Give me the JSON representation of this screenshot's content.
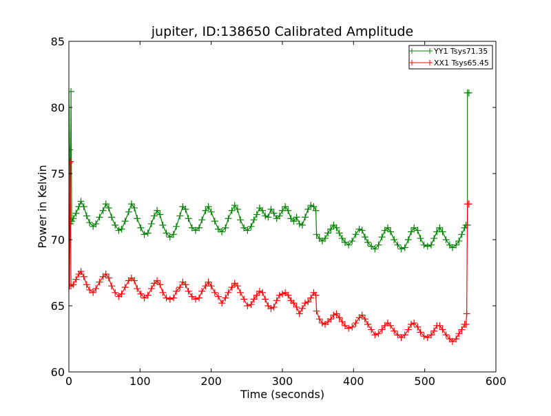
{
  "chart_data": {
    "type": "line",
    "title": "jupiter, ID:138650 Calibrated Amplitude",
    "xlabel": "Time (seconds)",
    "ylabel": "Power in Kelvin",
    "xlim": [
      0,
      600
    ],
    "ylim": [
      60,
      85
    ],
    "xticks": [
      0,
      100,
      200,
      300,
      400,
      500,
      600
    ],
    "yticks": [
      60,
      65,
      70,
      75,
      80,
      85
    ],
    "grid": false,
    "legend_position": "top-right",
    "marker": "+",
    "series": [
      {
        "name": "YY1 Tsys71.35",
        "color": "#008000",
        "points": [
          [
            0,
            81.2
          ],
          [
            1,
            76.8
          ],
          [
            2,
            71.2
          ],
          [
            3,
            81.2
          ],
          [
            4,
            71.4
          ],
          [
            6,
            71.6
          ],
          [
            10,
            72.0
          ],
          [
            14,
            72.5
          ],
          [
            17,
            72.9
          ],
          [
            21,
            72.5
          ],
          [
            25,
            71.8
          ],
          [
            29,
            71.3
          ],
          [
            34,
            71.0
          ],
          [
            38,
            71.2
          ],
          [
            43,
            71.7
          ],
          [
            48,
            72.2
          ],
          [
            52,
            72.7
          ],
          [
            56,
            72.4
          ],
          [
            60,
            71.7
          ],
          [
            65,
            71.1
          ],
          [
            70,
            70.7
          ],
          [
            74,
            70.8
          ],
          [
            79,
            71.4
          ],
          [
            84,
            72.1
          ],
          [
            88,
            72.7
          ],
          [
            92,
            72.4
          ],
          [
            96,
            71.6
          ],
          [
            101,
            70.9
          ],
          [
            106,
            70.4
          ],
          [
            111,
            70.5
          ],
          [
            116,
            71.2
          ],
          [
            120,
            71.8
          ],
          [
            124,
            72.2
          ],
          [
            128,
            71.9
          ],
          [
            132,
            71.1
          ],
          [
            137,
            70.5
          ],
          [
            142,
            70.2
          ],
          [
            147,
            70.4
          ],
          [
            151,
            71.0
          ],
          [
            156,
            71.8
          ],
          [
            160,
            72.5
          ],
          [
            164,
            72.3
          ],
          [
            168,
            71.6
          ],
          [
            173,
            70.9
          ],
          [
            178,
            70.7
          ],
          [
            183,
            70.9
          ],
          [
            187,
            71.5
          ],
          [
            192,
            72.2
          ],
          [
            196,
            72.5
          ],
          [
            200,
            72.1
          ],
          [
            205,
            71.4
          ],
          [
            210,
            70.8
          ],
          [
            215,
            70.6
          ],
          [
            220,
            70.9
          ],
          [
            224,
            71.6
          ],
          [
            229,
            72.2
          ],
          [
            233,
            72.6
          ],
          [
            237,
            72.3
          ],
          [
            241,
            71.5
          ],
          [
            246,
            70.9
          ],
          [
            251,
            70.7
          ],
          [
            256,
            71.0
          ],
          [
            260,
            71.5
          ],
          [
            264,
            71.9
          ],
          [
            268,
            72.4
          ],
          [
            272,
            72.2
          ],
          [
            276,
            71.8
          ],
          [
            280,
            71.7
          ],
          [
            284,
            72.3
          ],
          [
            288,
            72.0
          ],
          [
            292,
            71.6
          ],
          [
            296,
            71.8
          ],
          [
            300,
            72.2
          ],
          [
            304,
            72.5
          ],
          [
            308,
            72.2
          ],
          [
            312,
            71.6
          ],
          [
            316,
            71.4
          ],
          [
            320,
            71.7
          ],
          [
            324,
            71.2
          ],
          [
            328,
            71.1
          ],
          [
            332,
            71.7
          ],
          [
            336,
            72.3
          ],
          [
            340,
            72.6
          ],
          [
            344,
            72.5
          ],
          [
            347,
            72.2
          ],
          [
            348,
            70.4
          ],
          [
            352,
            70.1
          ],
          [
            356,
            69.9
          ],
          [
            360,
            70.1
          ],
          [
            364,
            70.5
          ],
          [
            368,
            70.8
          ],
          [
            372,
            71.1
          ],
          [
            376,
            70.9
          ],
          [
            380,
            70.5
          ],
          [
            384,
            70.1
          ],
          [
            388,
            69.8
          ],
          [
            393,
            69.6
          ],
          [
            398,
            69.9
          ],
          [
            403,
            70.4
          ],
          [
            408,
            70.8
          ],
          [
            412,
            70.7
          ],
          [
            416,
            70.2
          ],
          [
            420,
            69.8
          ],
          [
            425,
            69.5
          ],
          [
            430,
            69.3
          ],
          [
            435,
            69.6
          ],
          [
            440,
            70.2
          ],
          [
            444,
            70.7
          ],
          [
            448,
            70.9
          ],
          [
            452,
            70.6
          ],
          [
            457,
            70.0
          ],
          [
            462,
            69.6
          ],
          [
            467,
            69.3
          ],
          [
            472,
            69.4
          ],
          [
            477,
            70.0
          ],
          [
            481,
            70.6
          ],
          [
            485,
            70.9
          ],
          [
            490,
            70.7
          ],
          [
            494,
            70.1
          ],
          [
            499,
            69.6
          ],
          [
            504,
            69.5
          ],
          [
            509,
            69.6
          ],
          [
            513,
            70.1
          ],
          [
            517,
            70.6
          ],
          [
            521,
            70.9
          ],
          [
            525,
            70.6
          ],
          [
            530,
            70.0
          ],
          [
            535,
            69.6
          ],
          [
            539,
            69.4
          ],
          [
            544,
            69.6
          ],
          [
            548,
            69.9
          ],
          [
            552,
            70.4
          ],
          [
            556,
            70.9
          ],
          [
            558,
            71.1
          ],
          [
            560,
            71.1
          ],
          [
            560,
            81.1
          ],
          [
            562,
            81.1
          ]
        ]
      },
      {
        "name": "XX1 Tsys65.45",
        "color": "#ff0000",
        "points": [
          [
            0,
            75.8
          ],
          [
            1,
            66.5
          ],
          [
            2,
            75.9
          ],
          [
            3,
            66.5
          ],
          [
            6,
            66.6
          ],
          [
            10,
            67.0
          ],
          [
            14,
            67.4
          ],
          [
            17,
            67.6
          ],
          [
            21,
            67.2
          ],
          [
            25,
            66.6
          ],
          [
            29,
            66.2
          ],
          [
            34,
            66.0
          ],
          [
            38,
            66.3
          ],
          [
            43,
            66.8
          ],
          [
            48,
            67.2
          ],
          [
            52,
            67.4
          ],
          [
            56,
            67.1
          ],
          [
            60,
            66.5
          ],
          [
            65,
            66.0
          ],
          [
            70,
            65.7
          ],
          [
            74,
            65.9
          ],
          [
            79,
            66.4
          ],
          [
            84,
            66.9
          ],
          [
            88,
            67.1
          ],
          [
            92,
            66.9
          ],
          [
            96,
            66.3
          ],
          [
            101,
            65.9
          ],
          [
            106,
            65.6
          ],
          [
            111,
            65.8
          ],
          [
            116,
            66.3
          ],
          [
            120,
            66.7
          ],
          [
            124,
            66.9
          ],
          [
            128,
            66.6
          ],
          [
            132,
            66.0
          ],
          [
            137,
            65.6
          ],
          [
            142,
            65.5
          ],
          [
            147,
            65.6
          ],
          [
            151,
            66.1
          ],
          [
            156,
            66.4
          ],
          [
            160,
            66.8
          ],
          [
            164,
            66.6
          ],
          [
            168,
            66.1
          ],
          [
            173,
            65.7
          ],
          [
            178,
            65.5
          ],
          [
            183,
            65.6
          ],
          [
            187,
            66.1
          ],
          [
            192,
            66.5
          ],
          [
            196,
            66.8
          ],
          [
            200,
            66.5
          ],
          [
            205,
            66.0
          ],
          [
            210,
            65.7
          ],
          [
            215,
            65.2
          ],
          [
            220,
            65.6
          ],
          [
            224,
            66.0
          ],
          [
            229,
            66.4
          ],
          [
            233,
            66.7
          ],
          [
            237,
            66.5
          ],
          [
            241,
            66.0
          ],
          [
            246,
            65.5
          ],
          [
            251,
            65.0
          ],
          [
            256,
            65.1
          ],
          [
            260,
            65.5
          ],
          [
            264,
            65.8
          ],
          [
            268,
            66.1
          ],
          [
            272,
            66.0
          ],
          [
            276,
            65.5
          ],
          [
            280,
            65.0
          ],
          [
            284,
            64.8
          ],
          [
            288,
            64.9
          ],
          [
            292,
            65.4
          ],
          [
            296,
            65.8
          ],
          [
            300,
            65.9
          ],
          [
            304,
            66.0
          ],
          [
            308,
            65.8
          ],
          [
            312,
            65.4
          ],
          [
            316,
            65.2
          ],
          [
            320,
            64.9
          ],
          [
            324,
            64.4
          ],
          [
            328,
            64.8
          ],
          [
            332,
            65.2
          ],
          [
            336,
            65.3
          ],
          [
            340,
            65.6
          ],
          [
            344,
            66.0
          ],
          [
            347,
            65.8
          ],
          [
            348,
            64.6
          ],
          [
            352,
            64.0
          ],
          [
            356,
            63.7
          ],
          [
            360,
            63.6
          ],
          [
            364,
            63.8
          ],
          [
            368,
            64.0
          ],
          [
            372,
            64.3
          ],
          [
            376,
            64.4
          ],
          [
            380,
            64.1
          ],
          [
            384,
            63.8
          ],
          [
            388,
            63.5
          ],
          [
            393,
            63.3
          ],
          [
            398,
            63.4
          ],
          [
            403,
            63.7
          ],
          [
            408,
            64.1
          ],
          [
            412,
            64.3
          ],
          [
            416,
            64.0
          ],
          [
            420,
            63.6
          ],
          [
            425,
            63.2
          ],
          [
            430,
            62.8
          ],
          [
            435,
            62.9
          ],
          [
            440,
            63.2
          ],
          [
            444,
            63.5
          ],
          [
            448,
            63.7
          ],
          [
            452,
            63.5
          ],
          [
            457,
            63.1
          ],
          [
            462,
            62.8
          ],
          [
            467,
            62.6
          ],
          [
            472,
            62.8
          ],
          [
            477,
            63.2
          ],
          [
            481,
            63.6
          ],
          [
            485,
            63.7
          ],
          [
            490,
            63.4
          ],
          [
            494,
            63.0
          ],
          [
            499,
            62.7
          ],
          [
            504,
            62.6
          ],
          [
            509,
            62.8
          ],
          [
            513,
            63.1
          ],
          [
            517,
            63.5
          ],
          [
            521,
            63.5
          ],
          [
            525,
            63.2
          ],
          [
            530,
            62.8
          ],
          [
            535,
            62.5
          ],
          [
            539,
            62.3
          ],
          [
            544,
            62.5
          ],
          [
            548,
            62.9
          ],
          [
            552,
            63.2
          ],
          [
            556,
            63.6
          ],
          [
            558,
            63.6
          ],
          [
            559,
            64.4
          ],
          [
            560,
            72.7
          ],
          [
            562,
            72.7
          ]
        ]
      }
    ]
  }
}
